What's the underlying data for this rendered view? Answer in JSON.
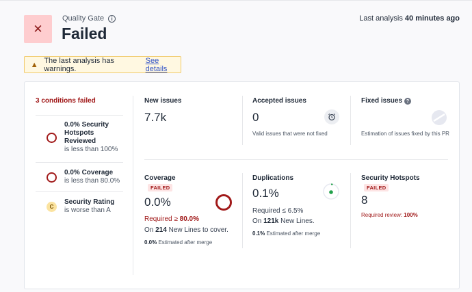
{
  "header": {
    "quality_gate_label": "Quality Gate",
    "status": "Failed",
    "status_icon": "close-icon",
    "last_analysis_prefix": "Last analysis",
    "last_analysis_time": "40 minutes ago"
  },
  "warning": {
    "text": "The last analysis has warnings.",
    "link": "See details"
  },
  "conditions": {
    "title": "3 conditions failed",
    "items": [
      {
        "value": "0.0% Security Hotspots Reviewed",
        "sub": "is less than 100%"
      },
      {
        "value": "0.0% Coverage",
        "sub": "is less than 80.0%"
      },
      {
        "value": "Security Rating",
        "sub": "is worse than A",
        "badge": "C"
      }
    ]
  },
  "metrics": {
    "new_issues": {
      "label": "New issues",
      "value": "7.7k"
    },
    "accepted_issues": {
      "label": "Accepted issues",
      "value": "0",
      "sub": "Valid issues that were not fixed"
    },
    "fixed_issues": {
      "label": "Fixed issues",
      "sub": "Estimation of issues fixed by this PR"
    },
    "coverage": {
      "label": "Coverage",
      "tag": "FAILED",
      "value": "0.0%",
      "required_prefix": "Required ≥",
      "required_value": "80.0%",
      "on_prefix": "On",
      "on_value": "214",
      "on_suffix": "New Lines to cover.",
      "est_value": "0.0%",
      "est_suffix": "Estimated after merge"
    },
    "duplications": {
      "label": "Duplications",
      "value": "0.1%",
      "required": "Required ≤ 6.5%",
      "on_prefix": "On",
      "on_value": "121k",
      "on_suffix": "New Lines.",
      "est_value": "0.1%",
      "est_suffix": "Estimated after merge"
    },
    "security_hotspots": {
      "label": "Security Hotspots",
      "tag": "FAILED",
      "value": "8",
      "req_prefix": "Required review:",
      "req_value": "100%"
    }
  },
  "colors": {
    "error": "#a11a1a",
    "error_bg": "#fecdcf",
    "link": "#3556c8",
    "warn_bg": "#fff8e1"
  }
}
